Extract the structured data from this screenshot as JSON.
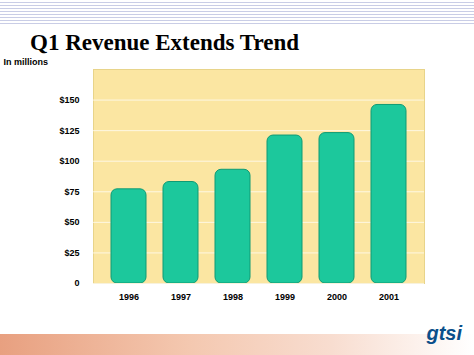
{
  "chart_data": {
    "type": "bar",
    "title": "Q1 Revenue Extends Trend",
    "y_label": "In millions",
    "logo": "gtsi",
    "categories": [
      "1996",
      "1997",
      "1998",
      "1999",
      "2000",
      "2001"
    ],
    "values": [
      77,
      83,
      93,
      121,
      123,
      146
    ],
    "color": "#1cc89c",
    "ylim": [
      0,
      175
    ],
    "yticks": [
      0,
      {
        "value": 25,
        "label": "$25"
      },
      {
        "value": 50,
        "label": "$50"
      },
      {
        "value": 75,
        "label": "$75"
      },
      {
        "value": 100,
        "label": "$100"
      },
      {
        "value": 125,
        "label": "$125"
      },
      {
        "value": 150,
        "label": "$150"
      }
    ],
    "grid": true
  }
}
